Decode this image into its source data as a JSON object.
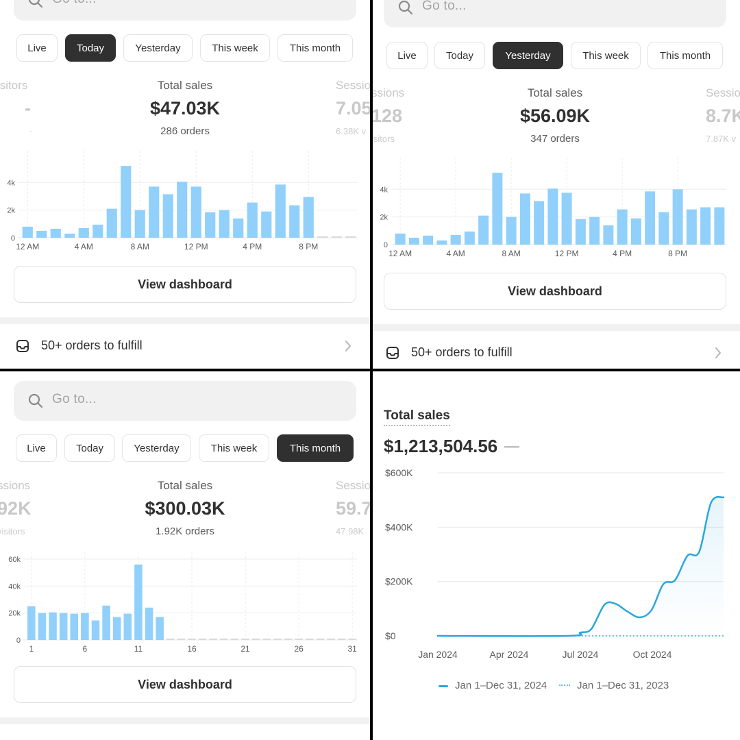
{
  "panels": [
    {
      "search_placeholder": "Go to...",
      "tabs": [
        "Live",
        "Today",
        "Yesterday",
        "This week",
        "This month"
      ],
      "active_tab": "Today",
      "left_metric": {
        "label": "isitors",
        "value": "-",
        "sub": "-"
      },
      "center_metric": {
        "label": "Total sales",
        "value": "$47.03K",
        "sub": "286 orders"
      },
      "right_metric": {
        "label": "Sessio",
        "value": "7.05",
        "sub": "6.38K v"
      },
      "button": "View dashboard",
      "fulfill": "50+ orders to fulfill"
    },
    {
      "search_placeholder": "Go to...",
      "tabs": [
        "Live",
        "Today",
        "Yesterday",
        "This week",
        "This month"
      ],
      "active_tab": "Yesterday",
      "left_metric": {
        "label": "ssions",
        "value": "128",
        "sub": "isitors"
      },
      "center_metric": {
        "label": "Total sales",
        "value": "$56.09K",
        "sub": "347 orders"
      },
      "right_metric": {
        "label": "Sessio",
        "value": "8.7K",
        "sub": "7.87K v"
      },
      "button": "View dashboard",
      "fulfill": "50+ orders to fulfill"
    },
    {
      "search_placeholder": "Go to...",
      "tabs": [
        "Live",
        "Today",
        "Yesterday",
        "This week",
        "This month"
      ],
      "active_tab": "This month",
      "left_metric": {
        "label": "ssions",
        "value": "92K",
        "sub": "visitors"
      },
      "center_metric": {
        "label": "Total sales",
        "value": "$300.03K",
        "sub": "1.92K orders"
      },
      "right_metric": {
        "label": "Sessio",
        "value": "59.7",
        "sub": "47.98K"
      },
      "button": "View dashboard"
    },
    {
      "title": "Total sales",
      "total": "$1,213,504.56",
      "dash": "—"
    }
  ],
  "chart_data": [
    {
      "type": "bar",
      "title": "Total sales (Today)",
      "categories": [
        "12 AM",
        "1 AM",
        "2 AM",
        "3 AM",
        "4 AM",
        "5 AM",
        "6 AM",
        "7 AM",
        "8 AM",
        "9 AM",
        "10 AM",
        "11 AM",
        "12 PM",
        "1 PM",
        "2 PM",
        "3 PM",
        "4 PM",
        "5 PM",
        "6 PM",
        "7 PM",
        "8 PM",
        "9 PM",
        "10 PM",
        "11 PM"
      ],
      "values": [
        800,
        500,
        650,
        300,
        700,
        950,
        2100,
        5200,
        2000,
        3700,
        3150,
        4050,
        3700,
        1850,
        2000,
        1400,
        2550,
        1900,
        3850,
        2350,
        2950,
        0,
        0,
        0
      ],
      "future_from_index": 21,
      "xticks": [
        "12 AM",
        "4 AM",
        "8 AM",
        "12 PM",
        "4 PM",
        "8 PM"
      ],
      "yticks": [
        "0",
        "2k",
        "4k"
      ],
      "ylim": [
        0,
        5800
      ]
    },
    {
      "type": "bar",
      "title": "Total sales (Yesterday)",
      "categories": [
        "12 AM",
        "1 AM",
        "2 AM",
        "3 AM",
        "4 AM",
        "5 AM",
        "6 AM",
        "7 AM",
        "8 AM",
        "9 AM",
        "10 AM",
        "11 AM",
        "12 PM",
        "1 PM",
        "2 PM",
        "3 PM",
        "4 PM",
        "5 PM",
        "6 PM",
        "7 PM",
        "8 PM",
        "9 PM",
        "10 PM",
        "11 PM"
      ],
      "values": [
        800,
        500,
        650,
        300,
        700,
        950,
        2100,
        5200,
        2000,
        3700,
        3150,
        4050,
        3750,
        1850,
        2000,
        1400,
        2550,
        1900,
        3850,
        2350,
        4000,
        2550,
        2700,
        2700
      ],
      "xticks": [
        "12 AM",
        "4 AM",
        "8 AM",
        "12 PM",
        "4 PM",
        "8 PM"
      ],
      "yticks": [
        "0",
        "2k",
        "4k"
      ],
      "ylim": [
        0,
        5800
      ]
    },
    {
      "type": "bar",
      "title": "Total sales (This month)",
      "categories": [
        "1",
        "2",
        "3",
        "4",
        "5",
        "6",
        "7",
        "8",
        "9",
        "10",
        "11",
        "12",
        "13",
        "14",
        "15",
        "16",
        "17",
        "18",
        "19",
        "20",
        "21",
        "22",
        "23",
        "24",
        "25",
        "26",
        "27",
        "28",
        "29",
        "30",
        "31"
      ],
      "values": [
        25000,
        20000,
        20500,
        20000,
        19500,
        20000,
        14500,
        25500,
        17000,
        19500,
        56000,
        24000,
        17000,
        0,
        0,
        0,
        0,
        0,
        0,
        0,
        0,
        0,
        0,
        0,
        0,
        0,
        0,
        0,
        0,
        0,
        0
      ],
      "future_from_index": 13,
      "xticks": [
        "1",
        "6",
        "11",
        "16",
        "21",
        "26",
        "31"
      ],
      "yticks": [
        "0",
        "20k",
        "40k",
        "60k"
      ],
      "ylim": [
        0,
        60000
      ]
    },
    {
      "type": "line",
      "title": "Total sales",
      "x": [
        "2024-01-01",
        "2024-06-15",
        "2024-07-01",
        "2024-07-15",
        "2024-08-01",
        "2024-08-15",
        "2024-08-30",
        "2024-09-15",
        "2024-09-30",
        "2024-10-15",
        "2024-10-30",
        "2024-11-15",
        "2024-11-30",
        "2024-12-15",
        "2024-12-31"
      ],
      "series": [
        {
          "name": "Jan 1–Dec 31, 2024",
          "values": [
            0,
            0,
            12000,
            25000,
            115000,
            118000,
            90000,
            68000,
            95000,
            190000,
            205000,
            295000,
            310000,
            490000,
            510000
          ]
        },
        {
          "name": "Jan 1–Dec 31, 2023",
          "values": [
            0,
            0,
            0,
            0,
            0,
            0,
            0,
            0,
            0,
            0,
            0,
            0,
            0,
            0,
            0
          ]
        }
      ],
      "xticks": [
        "Jan 2024",
        "Apr 2024",
        "Jul 2024",
        "Oct 2024"
      ],
      "yticks": [
        "$0",
        "$200K",
        "$400K",
        "$600K"
      ],
      "ylim": [
        0,
        600000
      ],
      "colors": {
        "current": "#29a6dd",
        "previous": "#5fc6ef"
      }
    }
  ]
}
